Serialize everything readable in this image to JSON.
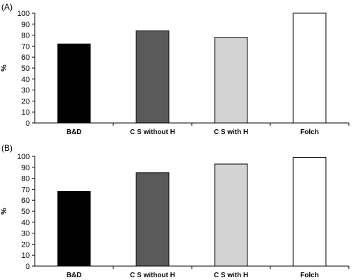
{
  "chart_data": [
    {
      "type": "bar",
      "panel_label": "(A)",
      "categories": [
        "B&D",
        "C S without H",
        "C S with H",
        "Folch"
      ],
      "values": [
        72,
        84,
        78,
        100
      ],
      "ylabel": "%",
      "xlabel": "",
      "ylim": [
        0,
        100
      ],
      "yticks": [
        0,
        10,
        20,
        30,
        40,
        50,
        60,
        70,
        80,
        90,
        100
      ],
      "bar_colors": [
        "#000000",
        "#5a5a5a",
        "#d3d3d3",
        "#ffffff"
      ],
      "grid": false
    },
    {
      "type": "bar",
      "panel_label": "(B)",
      "categories": [
        "B&D",
        "C S without H",
        "C S with H",
        "Folch"
      ],
      "values": [
        68,
        85,
        93,
        99
      ],
      "ylabel": "%",
      "xlabel": "",
      "ylim": [
        0,
        100
      ],
      "yticks": [
        0,
        10,
        20,
        30,
        40,
        50,
        60,
        70,
        80,
        90,
        100
      ],
      "bar_colors": [
        "#000000",
        "#5a5a5a",
        "#d3d3d3",
        "#ffffff"
      ],
      "grid": false
    }
  ]
}
